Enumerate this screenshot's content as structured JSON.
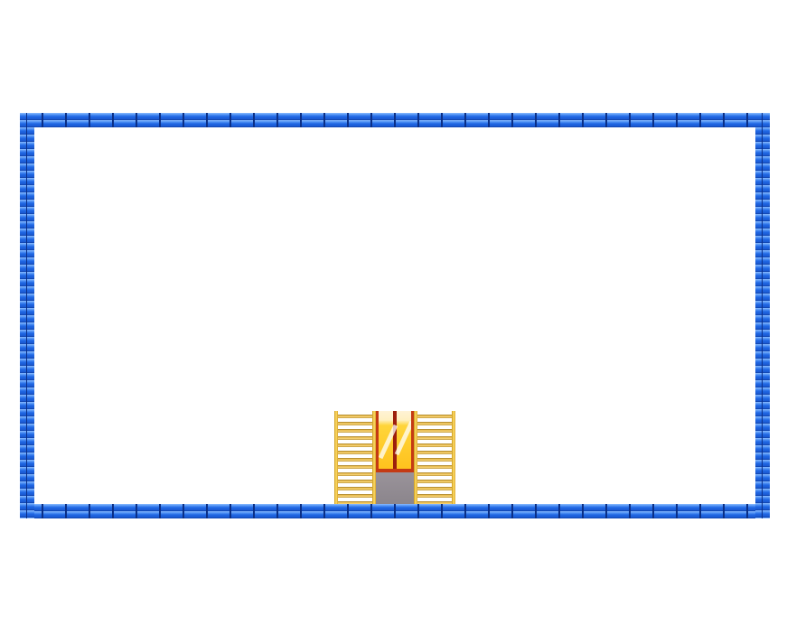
{
  "scene": {
    "background_color": "#ffffff",
    "wall": {
      "style": "blue-brick",
      "color": "#1e63e0",
      "mortar_color": "#0b2f86"
    },
    "ladders": [
      {
        "id": "left",
        "color": "#e5b84a"
      },
      {
        "id": "right",
        "color": "#e5b84a"
      }
    ],
    "exit_door": {
      "frame_color": "#c43a14",
      "glass_color": "#ffc21e",
      "base_color": "#8b858c",
      "icon": "exit-door-icon"
    }
  }
}
